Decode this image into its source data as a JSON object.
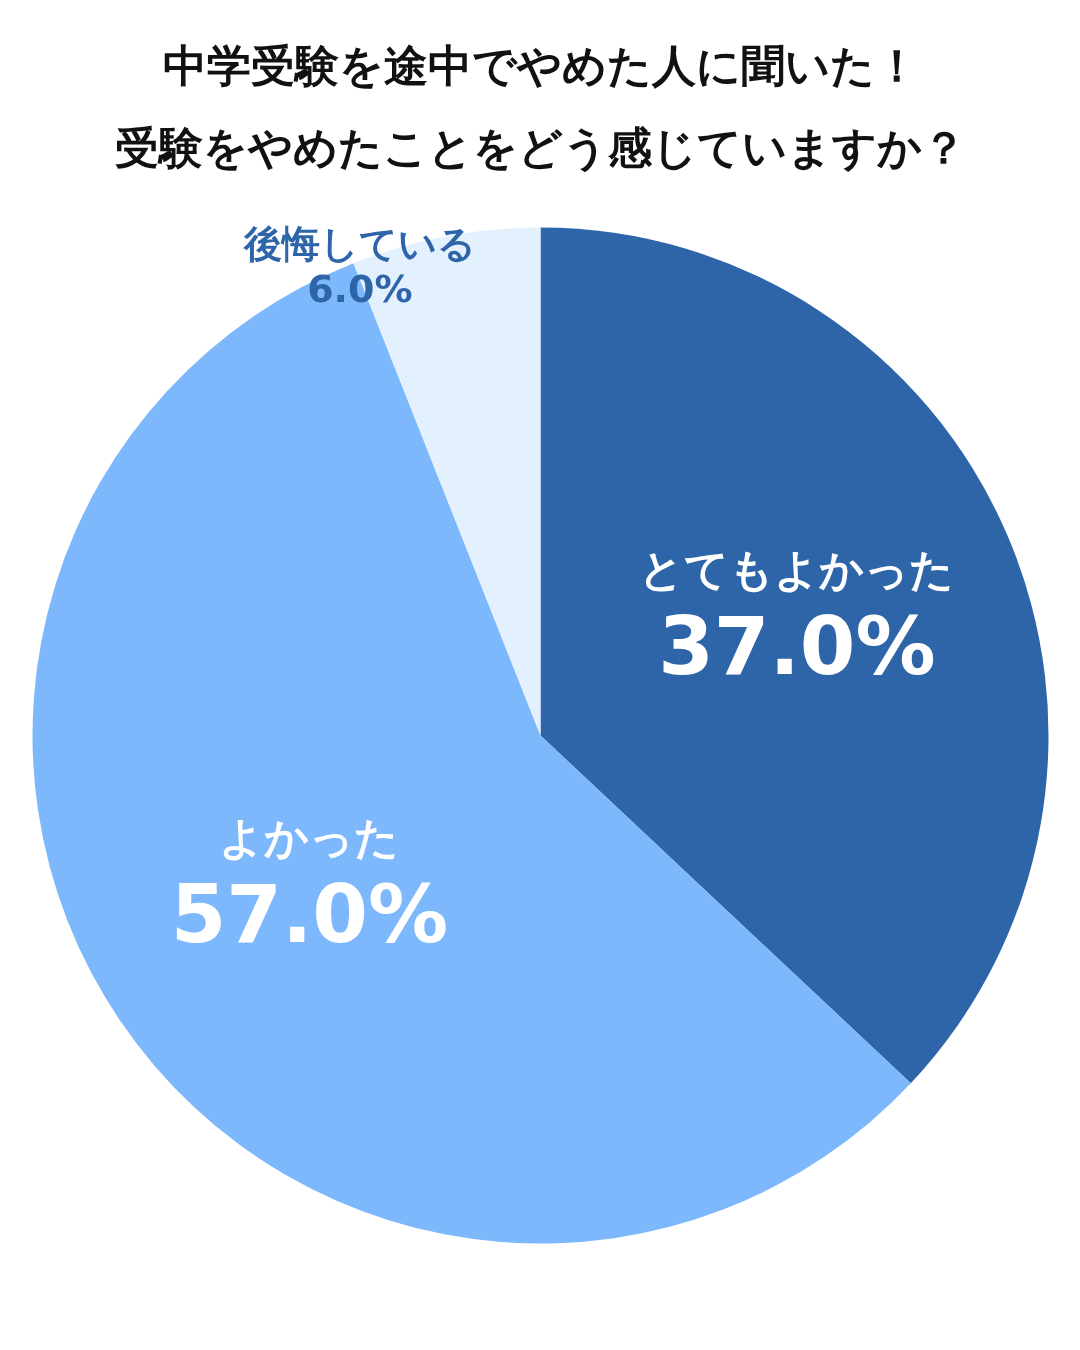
{
  "chart_data": {
    "type": "pie",
    "title": "中学受験を途中でやめた人に聞いた！受験をやめたことをどう感じていますか？",
    "categories": [
      "とてもよかった",
      "よかった",
      "後悔している"
    ],
    "values": [
      37.0,
      57.0,
      6.0
    ],
    "value_labels": [
      "37.0%",
      "57.0%",
      "6.0%"
    ],
    "colors": [
      "#2e65a8",
      "#7db8fc",
      "#e3f0fe"
    ]
  }
}
